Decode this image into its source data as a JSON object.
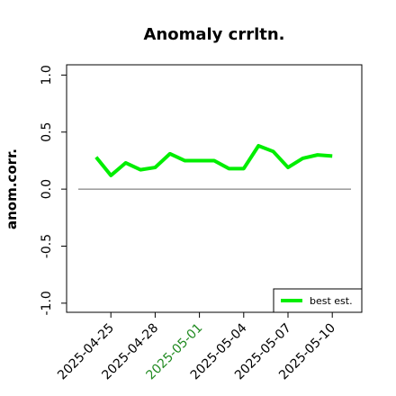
{
  "chart_data": {
    "type": "line",
    "title": "Anomaly crrltn.",
    "ylabel": "anom.corr.",
    "x": [
      "2025-04-24",
      "2025-04-25",
      "2025-04-26",
      "2025-04-27",
      "2025-04-28",
      "2025-04-29",
      "2025-04-30",
      "2025-05-01",
      "2025-05-02",
      "2025-05-03",
      "2025-05-04",
      "2025-05-05",
      "2025-05-06",
      "2025-05-07",
      "2025-05-08",
      "2025-05-09",
      "2025-05-10"
    ],
    "series": [
      {
        "name": "best est.",
        "color": "#00ee00",
        "values": [
          0.28,
          0.12,
          0.23,
          0.17,
          0.19,
          0.31,
          0.25,
          0.25,
          0.25,
          0.18,
          0.18,
          0.38,
          0.33,
          0.19,
          0.27,
          0.3,
          0.29
        ]
      }
    ],
    "xlim": [
      "2025-04-22",
      "2025-05-12"
    ],
    "xticks": [
      "2025-04-25",
      "2025-04-28",
      "2025-05-01",
      "2025-05-04",
      "2025-05-07",
      "2025-05-10"
    ],
    "xtick_colors": [
      "#000000",
      "#000000",
      "#228b22",
      "#000000",
      "#000000",
      "#000000"
    ],
    "ylim": [
      -1.08,
      1.09
    ],
    "yticks": [
      {
        "value": -1,
        "label": "-1.0"
      },
      {
        "value": -0.5,
        "label": "-0.5"
      },
      {
        "value": 0,
        "label": "0.0"
      },
      {
        "value": 0.5,
        "label": "0.5"
      },
      {
        "value": 1,
        "label": "1.0"
      }
    ],
    "hline": 0,
    "hline_color": "#666666",
    "legend": "bottom-right"
  }
}
